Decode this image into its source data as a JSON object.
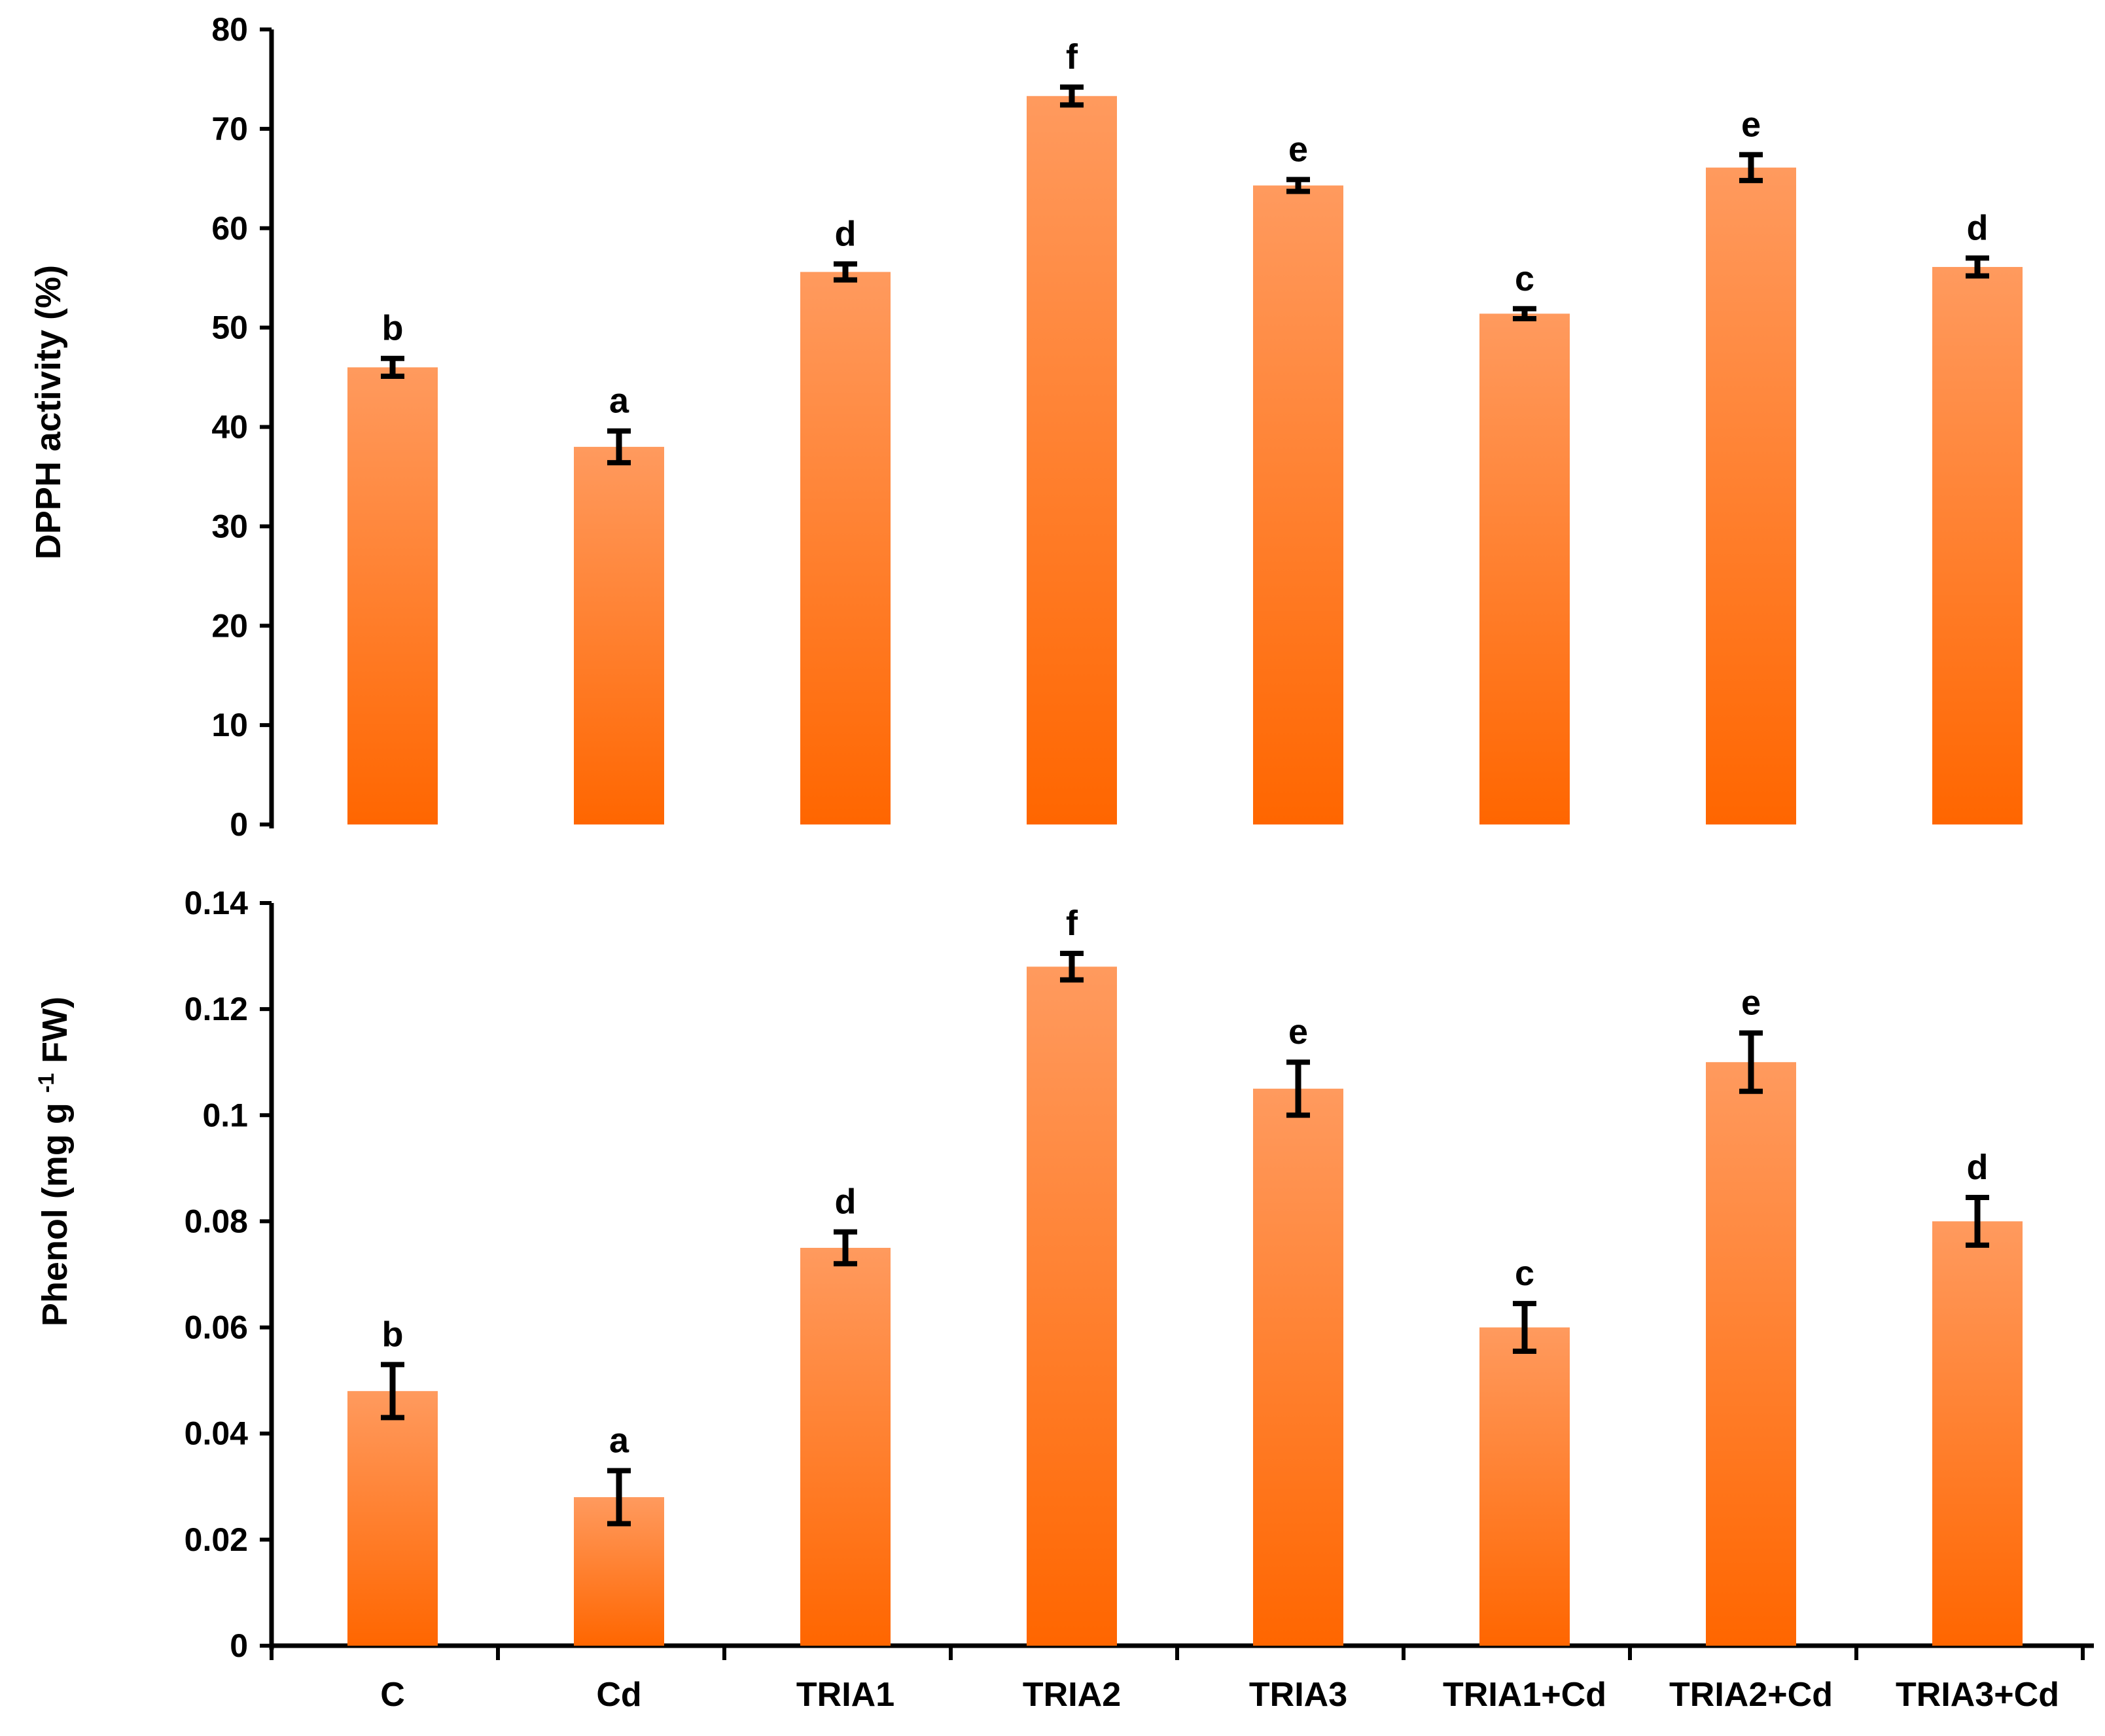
{
  "chart_data": [
    {
      "type": "bar",
      "ylabel": "DPPH  activity (%)",
      "ylim": [
        0,
        80
      ],
      "yticks": [
        0,
        10,
        20,
        30,
        40,
        50,
        60,
        70,
        80
      ],
      "ytick_labels": [
        "0",
        "10",
        "20",
        "30",
        "40",
        "50",
        "60",
        "70",
        "80"
      ],
      "categories": [
        "C",
        "Cd",
        "TRIA1",
        "TRIA2",
        "TRIA3",
        "TRIA1+Cd",
        "TRIA2+Cd",
        "TRIA3+Cd"
      ],
      "values": [
        46,
        38,
        55.6,
        73.3,
        64.3,
        51.4,
        66.1,
        56.1
      ],
      "errors": [
        0.9,
        1.6,
        0.8,
        0.9,
        0.6,
        0.5,
        1.3,
        0.9
      ],
      "significance": [
        "b",
        "a",
        "d",
        "f",
        "e",
        "c",
        "e",
        "d"
      ],
      "show_xlabels": false
    },
    {
      "type": "bar",
      "ylabel_main": "Phenol (mg g",
      "ylabel_sup": "-1",
      "ylabel_tail": " FW)",
      "ylim": [
        0,
        0.14
      ],
      "yticks": [
        0,
        0.02,
        0.04,
        0.06,
        0.08,
        0.1,
        0.12,
        0.14
      ],
      "ytick_labels": [
        "0",
        "0.02",
        "0.04",
        "0.06",
        "0.08",
        "0.1",
        "0.12",
        "0.14"
      ],
      "categories": [
        "C",
        "Cd",
        "TRIA1",
        "TRIA2",
        "TRIA3",
        "TRIA1+Cd",
        "TRIA2+Cd",
        "TRIA3+Cd"
      ],
      "values": [
        0.048,
        0.028,
        0.075,
        0.128,
        0.105,
        0.06,
        0.11,
        0.08
      ],
      "errors": [
        0.005,
        0.005,
        0.003,
        0.0025,
        0.005,
        0.0045,
        0.0055,
        0.0045
      ],
      "significance": [
        "b",
        "a",
        "d",
        "f",
        "e",
        "c",
        "e",
        "d"
      ],
      "show_xlabels": true
    }
  ],
  "colors": {
    "bar_top": "#ff9a5e",
    "bar_bottom": "#ff6600",
    "axis": "#000000",
    "error_bar": "#000000"
  }
}
